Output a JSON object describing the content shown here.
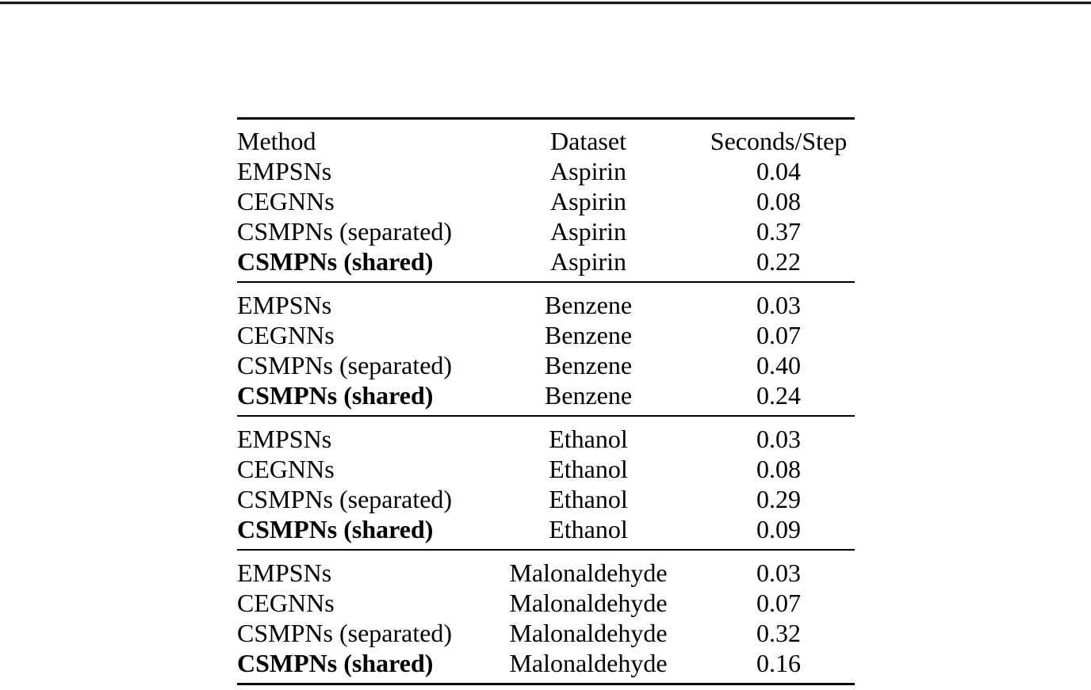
{
  "page": {
    "background": "#ffffff",
    "top_edge_line_color": "#161616",
    "rule_color": "#000000",
    "text_color": "#000000"
  },
  "table": {
    "headers": {
      "method": "Method",
      "dataset": "Dataset",
      "seconds": "Seconds/Step"
    },
    "groups": [
      {
        "rows": [
          {
            "method": "EMPSNs",
            "dataset": "Aspirin",
            "seconds": "0.04"
          },
          {
            "method": "CEGNNs",
            "dataset": "Aspirin",
            "seconds": "0.08"
          },
          {
            "method": "CSMPNs (separated)",
            "dataset": "Aspirin",
            "seconds": "0.37"
          },
          {
            "method": "CSMPNs (shared)",
            "dataset": "Aspirin",
            "seconds": "0.22"
          }
        ]
      },
      {
        "rows": [
          {
            "method": "EMPSNs",
            "dataset": "Benzene",
            "seconds": "0.03"
          },
          {
            "method": "CEGNNs",
            "dataset": "Benzene",
            "seconds": "0.07"
          },
          {
            "method": "CSMPNs (separated)",
            "dataset": "Benzene",
            "seconds": "0.40"
          },
          {
            "method": "CSMPNs (shared)",
            "dataset": "Benzene",
            "seconds": "0.24"
          }
        ]
      },
      {
        "rows": [
          {
            "method": "EMPSNs",
            "dataset": "Ethanol",
            "seconds": "0.03"
          },
          {
            "method": "CEGNNs",
            "dataset": "Ethanol",
            "seconds": "0.08"
          },
          {
            "method": "CSMPNs (separated)",
            "dataset": "Ethanol",
            "seconds": "0.29"
          },
          {
            "method": "CSMPNs (shared)",
            "dataset": "Ethanol",
            "seconds": "0.09"
          }
        ]
      },
      {
        "rows": [
          {
            "method": "EMPSNs",
            "dataset": "Malonaldehyde",
            "seconds": "0.03"
          },
          {
            "method": "CEGNNs",
            "dataset": "Malonaldehyde",
            "seconds": "0.07"
          },
          {
            "method": "CSMPNs (separated)",
            "dataset": "Malonaldehyde",
            "seconds": "0.32"
          },
          {
            "method": "CSMPNs (shared)",
            "dataset": "Malonaldehyde",
            "seconds": "0.16"
          }
        ]
      }
    ]
  }
}
